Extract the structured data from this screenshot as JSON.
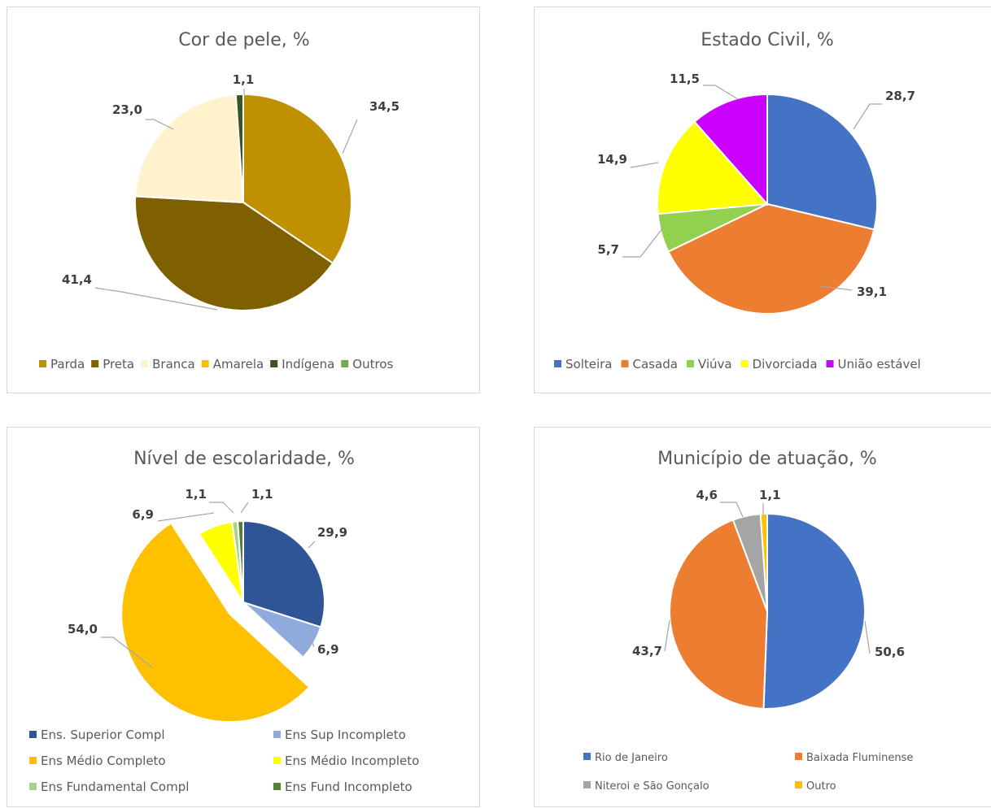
{
  "chart_data": [
    {
      "type": "pie",
      "title": "Cor de pele, %",
      "categories": [
        "Parda",
        "Preta",
        "Branca",
        "Amarela",
        "Indígena",
        "Outros"
      ],
      "values": [
        34.5,
        41.4,
        23.0,
        0,
        1.1,
        0
      ],
      "data_labels": [
        "34,5",
        "41,4",
        "23,0",
        "",
        "1,1",
        ""
      ],
      "colors": [
        "#BF9000",
        "#7F6000",
        "#FFF2CC",
        "#FFC000",
        "#375623",
        "#70AD47"
      ],
      "legend_position": "bottom"
    },
    {
      "type": "pie",
      "title": "Estado Civil, %",
      "categories": [
        "Solteira",
        "Casada",
        "Viúva",
        "Divorciada",
        "União estável"
      ],
      "values": [
        28.7,
        39.1,
        5.7,
        14.9,
        11.5
      ],
      "data_labels": [
        "28,7",
        "39,1",
        "5,7",
        "14,9",
        "11,5"
      ],
      "colors": [
        "#4472C4",
        "#ED7D31",
        "#92D050",
        "#FFFF00",
        "#CC00FF"
      ],
      "legend_position": "bottom"
    },
    {
      "type": "pie",
      "title": "Nível de escolaridade, %",
      "categories": [
        "Ens. Superior Compl",
        "Ens Sup Incompleto",
        "Ens Médio Completo",
        "Ens Médio Incompleto",
        "Ens Fundamental Compl",
        "Ens Fund Incompleto"
      ],
      "values": [
        29.9,
        6.9,
        54.0,
        6.9,
        1.1,
        1.1
      ],
      "data_labels": [
        "29,9",
        "6,9",
        "54,0",
        "6,9",
        "1,1",
        "1,1"
      ],
      "colors": [
        "#2F5597",
        "#8FAADC",
        "#FFC000",
        "#FFFF00",
        "#A9D18E",
        "#548235"
      ],
      "exploded": [
        false,
        false,
        true,
        false,
        false,
        false
      ],
      "legend_position": "bottom"
    },
    {
      "type": "pie",
      "title": "Município de atuação, %",
      "categories": [
        "Rio de Janeiro",
        "Baixada Fluminense",
        "Niteroi e São Gonçalo",
        "Outro"
      ],
      "values": [
        50.6,
        43.7,
        4.6,
        1.1
      ],
      "data_labels": [
        "50,6",
        "43,7",
        "4,6",
        "1,1"
      ],
      "colors": [
        "#4472C4",
        "#ED7D31",
        "#A5A5A5",
        "#FFC000"
      ],
      "legend_position": "bottom"
    }
  ]
}
